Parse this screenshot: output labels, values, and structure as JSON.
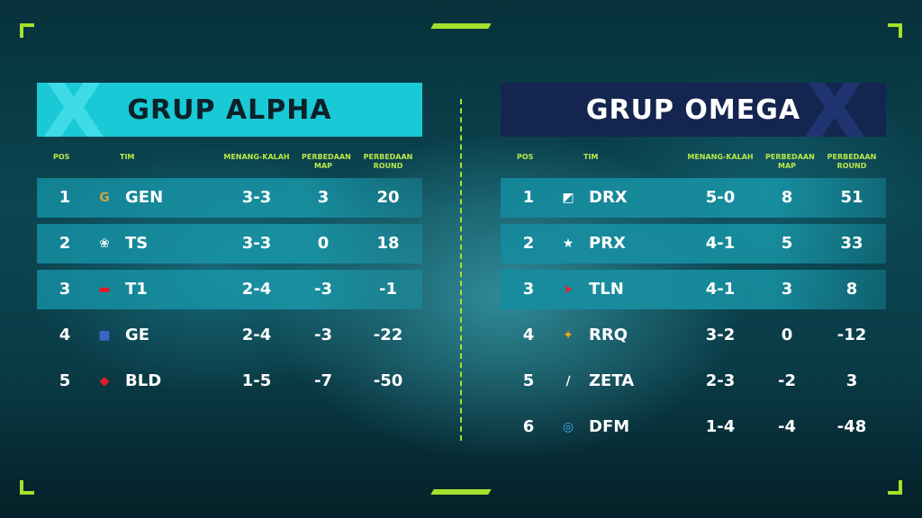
{
  "groups": [
    {
      "title": "GRUP ALPHA",
      "headers": {
        "pos": "POS",
        "team": "TIM",
        "wl": "MENANG-KALAH",
        "map_line1": "PERBEDAAN",
        "map_line2": "MAP",
        "round_line1": "PERBEDAAN",
        "round_line2": "ROUND"
      },
      "rows": [
        {
          "pos": "1",
          "team": "GEN",
          "logo_icon": "gen-logo-icon",
          "logo_glyph": "G",
          "logo_color": "#c9a648",
          "wl": "3-3",
          "map_diff": "3",
          "round_diff": "20",
          "highlight": true
        },
        {
          "pos": "2",
          "team": "TS",
          "logo_icon": "ts-logo-icon",
          "logo_glyph": "❀",
          "logo_color": "#e8f4f7",
          "wl": "3-3",
          "map_diff": "0",
          "round_diff": "18",
          "highlight": true
        },
        {
          "pos": "3",
          "team": "T1",
          "logo_icon": "t1-logo-icon",
          "logo_glyph": "▬",
          "logo_color": "#e2162c",
          "wl": "2-4",
          "map_diff": "-3",
          "round_diff": "-1",
          "highlight": true
        },
        {
          "pos": "4",
          "team": "GE",
          "logo_icon": "ge-logo-icon",
          "logo_glyph": "■",
          "logo_color": "#3a67c4",
          "wl": "2-4",
          "map_diff": "-3",
          "round_diff": "-22",
          "highlight": false
        },
        {
          "pos": "5",
          "team": "BLD",
          "logo_icon": "bld-logo-icon",
          "logo_glyph": "◆",
          "logo_color": "#d7202a",
          "wl": "1-5",
          "map_diff": "-7",
          "round_diff": "-50",
          "highlight": false
        }
      ]
    },
    {
      "title": "GRUP OMEGA",
      "headers": {
        "pos": "POS",
        "team": "TIM",
        "wl": "MENANG-KALAH",
        "map_line1": "PERBEDAAN",
        "map_line2": "MAP",
        "round_line1": "PERBEDAAN",
        "round_line2": "ROUND"
      },
      "rows": [
        {
          "pos": "1",
          "team": "DRX",
          "logo_icon": "drx-logo-icon",
          "logo_glyph": "◩",
          "logo_color": "#ffffff",
          "wl": "5-0",
          "map_diff": "8",
          "round_diff": "51",
          "highlight": true
        },
        {
          "pos": "2",
          "team": "PRX",
          "logo_icon": "prx-logo-icon",
          "logo_glyph": "★",
          "logo_color": "#ffffff",
          "wl": "4-1",
          "map_diff": "5",
          "round_diff": "33",
          "highlight": true
        },
        {
          "pos": "3",
          "team": "TLN",
          "logo_icon": "tln-logo-icon",
          "logo_glyph": "➤",
          "logo_color": "#e4233a",
          "wl": "4-1",
          "map_diff": "3",
          "round_diff": "8",
          "highlight": true
        },
        {
          "pos": "4",
          "team": "RRQ",
          "logo_icon": "rrq-logo-icon",
          "logo_glyph": "✦",
          "logo_color": "#f0a020",
          "wl": "3-2",
          "map_diff": "0",
          "round_diff": "-12",
          "highlight": false
        },
        {
          "pos": "5",
          "team": "ZETA",
          "logo_icon": "zeta-logo-icon",
          "logo_glyph": "∕",
          "logo_color": "#ffffff",
          "wl": "2-3",
          "map_diff": "-2",
          "round_diff": "3",
          "highlight": false
        },
        {
          "pos": "6",
          "team": "DFM",
          "logo_icon": "dfm-logo-icon",
          "logo_glyph": "◎",
          "logo_color": "#3db2ef",
          "wl": "1-4",
          "map_diff": "-4",
          "round_diff": "-48",
          "highlight": false
        }
      ]
    }
  ]
}
